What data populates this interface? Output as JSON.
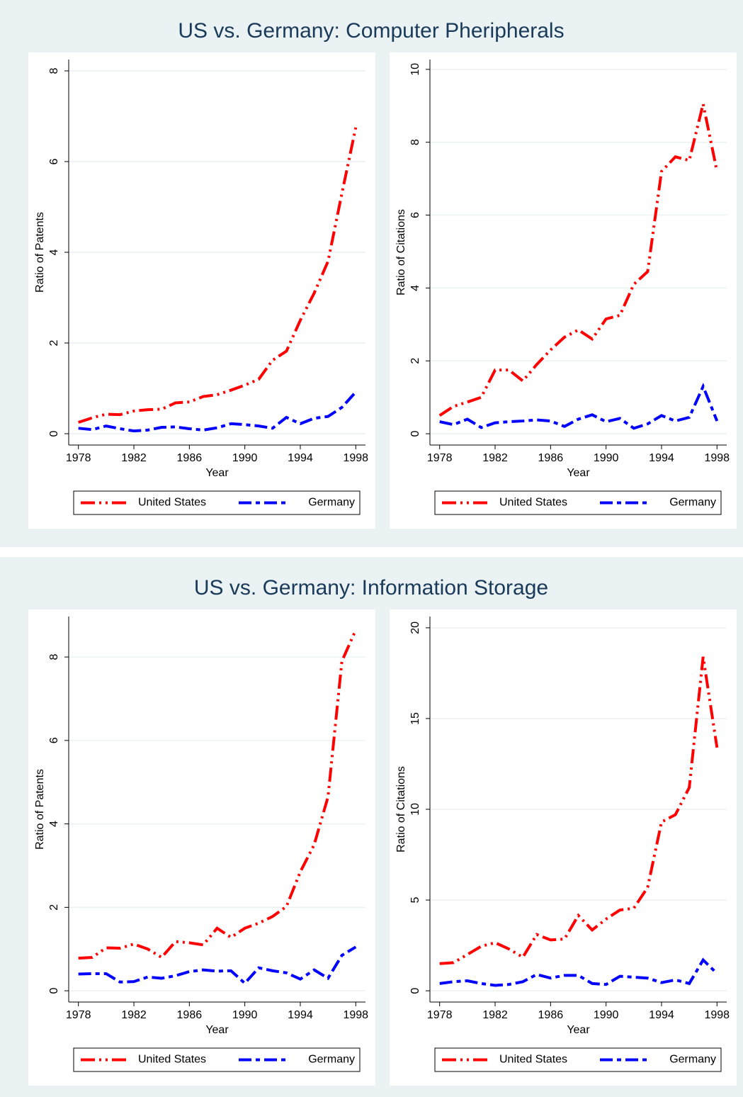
{
  "chart_data": [
    {
      "type": "line",
      "title": "US vs. Germany: Computer Pheripherals",
      "xlabel": "Year",
      "ylabel": "Ratio of Patents",
      "x": [
        1978,
        1979,
        1980,
        1981,
        1982,
        1983,
        1984,
        1985,
        1986,
        1987,
        1988,
        1989,
        1990,
        1991,
        1992,
        1993,
        1994,
        1995,
        1996,
        1997,
        1998
      ],
      "series": [
        {
          "name": "United States",
          "color": "#ff0000",
          "values": [
            0.25,
            0.35,
            0.43,
            0.42,
            0.5,
            0.53,
            0.54,
            0.68,
            0.7,
            0.82,
            0.86,
            0.96,
            1.07,
            1.2,
            1.62,
            1.82,
            2.5,
            3.1,
            3.8,
            5.3,
            6.75
          ]
        },
        {
          "name": "Germany",
          "color": "#0000ff",
          "values": [
            0.12,
            0.09,
            0.17,
            0.11,
            0.06,
            0.08,
            0.14,
            0.15,
            0.11,
            0.08,
            0.13,
            0.22,
            0.2,
            0.17,
            0.12,
            0.36,
            0.22,
            0.34,
            0.38,
            0.58,
            0.92
          ]
        }
      ],
      "xlim": [
        1977.3,
        1998.7
      ],
      "xticks": [
        1978,
        1982,
        1986,
        1990,
        1994,
        1998
      ],
      "ylim": [
        -0.25,
        8.25
      ],
      "yticks": [
        0,
        2,
        4,
        6,
        8
      ],
      "grid": true
    },
    {
      "type": "line",
      "xlabel": "Year",
      "ylabel": "Ratio of Citations",
      "x": [
        1978,
        1979,
        1980,
        1981,
        1982,
        1983,
        1984,
        1985,
        1986,
        1987,
        1988,
        1989,
        1990,
        1991,
        1992,
        1993,
        1994,
        1995,
        1996,
        1997,
        1998
      ],
      "series": [
        {
          "name": "United States",
          "color": "#ff0000",
          "values": [
            0.5,
            0.75,
            0.87,
            1.0,
            1.75,
            1.75,
            1.45,
            1.9,
            2.3,
            2.65,
            2.85,
            2.6,
            3.15,
            3.25,
            4.1,
            4.45,
            7.2,
            7.6,
            7.5,
            9.05,
            7.2
          ]
        },
        {
          "name": "Germany",
          "color": "#0000ff",
          "values": [
            0.33,
            0.25,
            0.4,
            0.17,
            0.3,
            0.33,
            0.35,
            0.38,
            0.35,
            0.2,
            0.4,
            0.52,
            0.33,
            0.42,
            0.15,
            0.27,
            0.5,
            0.35,
            0.45,
            1.3,
            0.35
          ]
        }
      ],
      "xlim": [
        1977.3,
        1998.7
      ],
      "xticks": [
        1978,
        1982,
        1986,
        1990,
        1994,
        1998
      ],
      "ylim": [
        -0.31,
        10.27
      ],
      "yticks": [
        0,
        2,
        4,
        6,
        8,
        10
      ],
      "grid": true
    },
    {
      "type": "line",
      "title": "US vs. Germany: Information Storage",
      "xlabel": "Year",
      "ylabel": "Ratio of Patents",
      "x": [
        1978,
        1979,
        1980,
        1981,
        1982,
        1983,
        1984,
        1985,
        1986,
        1987,
        1988,
        1989,
        1990,
        1991,
        1992,
        1993,
        1994,
        1995,
        1996,
        1997,
        1998
      ],
      "series": [
        {
          "name": "United States",
          "color": "#ff0000",
          "values": [
            0.78,
            0.8,
            1.03,
            1.02,
            1.12,
            1.0,
            0.8,
            1.18,
            1.15,
            1.1,
            1.5,
            1.28,
            1.5,
            1.62,
            1.78,
            2.02,
            2.85,
            3.5,
            4.65,
            7.9,
            8.65
          ]
        },
        {
          "name": "Germany",
          "color": "#0000ff",
          "values": [
            0.4,
            0.41,
            0.41,
            0.21,
            0.22,
            0.33,
            0.3,
            0.36,
            0.46,
            0.5,
            0.47,
            0.48,
            0.18,
            0.55,
            0.48,
            0.43,
            0.28,
            0.5,
            0.3,
            0.85,
            1.05
          ]
        }
      ],
      "xlim": [
        1977.3,
        1998.7
      ],
      "xticks": [
        1978,
        1982,
        1986,
        1990,
        1994,
        1998
      ],
      "ylim": [
        -0.27,
        8.97
      ],
      "yticks": [
        0,
        2,
        4,
        6,
        8
      ],
      "grid": true
    },
    {
      "type": "line",
      "xlabel": "Year",
      "ylabel": "Ratio of Citations",
      "x": [
        1978,
        1979,
        1980,
        1981,
        1982,
        1983,
        1984,
        1985,
        1986,
        1987,
        1988,
        1989,
        1990,
        1991,
        1992,
        1993,
        1994,
        1995,
        1996,
        1997,
        1998
      ],
      "series": [
        {
          "name": "United States",
          "color": "#ff0000",
          "values": [
            1.5,
            1.55,
            2.0,
            2.45,
            2.65,
            2.3,
            1.85,
            3.1,
            2.8,
            2.85,
            4.15,
            3.35,
            3.95,
            4.45,
            4.55,
            5.7,
            9.3,
            9.7,
            11.2,
            18.4,
            13.4
          ]
        },
        {
          "name": "Germany",
          "color": "#0000ff",
          "values": [
            0.4,
            0.5,
            0.55,
            0.4,
            0.3,
            0.35,
            0.5,
            0.9,
            0.7,
            0.85,
            0.85,
            0.4,
            0.35,
            0.8,
            0.75,
            0.7,
            0.45,
            0.6,
            0.4,
            1.7,
            0.95
          ]
        }
      ],
      "xlim": [
        1977.3,
        1998.7
      ],
      "xticks": [
        1978,
        1982,
        1986,
        1990,
        1994,
        1998
      ],
      "ylim": [
        -0.62,
        20.62
      ],
      "yticks": [
        0,
        5,
        10,
        15,
        20
      ],
      "grid": true
    }
  ]
}
